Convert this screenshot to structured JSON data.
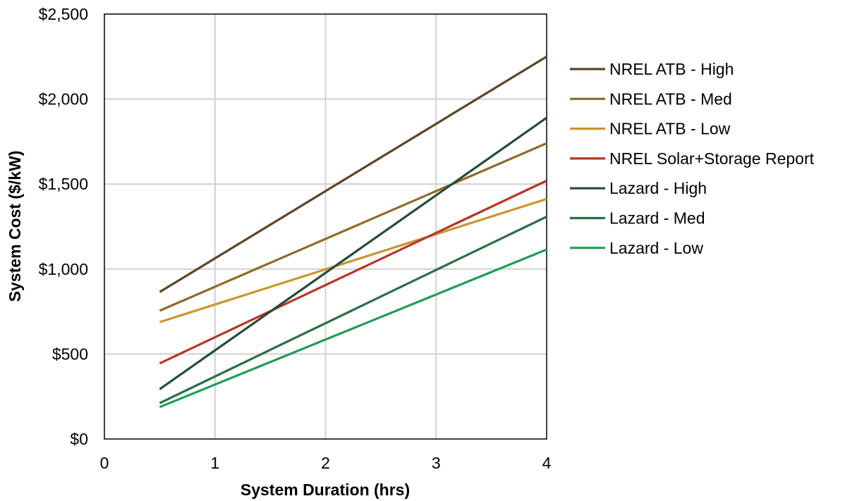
{
  "chart_data": {
    "type": "line",
    "title": "",
    "xlabel": "System Duration (hrs)",
    "ylabel": "System Cost ($/kW)",
    "xlim": [
      0,
      4
    ],
    "ylim": [
      0,
      2500
    ],
    "x_ticks": [
      {
        "value": 0,
        "label": "0"
      },
      {
        "value": 1,
        "label": "1"
      },
      {
        "value": 2,
        "label": "2"
      },
      {
        "value": 3,
        "label": "3"
      },
      {
        "value": 4,
        "label": "4"
      }
    ],
    "y_ticks": [
      {
        "value": 0,
        "label": "$0"
      },
      {
        "value": 500,
        "label": "$500"
      },
      {
        "value": 1000,
        "label": "$1,000"
      },
      {
        "value": 1500,
        "label": "$1,500"
      },
      {
        "value": 2000,
        "label": "$2,000"
      },
      {
        "value": 2500,
        "label": "$2,500"
      }
    ],
    "grid": true,
    "legend_position": "right",
    "x": [
      0.5,
      4
    ],
    "series": [
      {
        "name": "NREL ATB - High",
        "color": "#5c4527",
        "values": [
          865,
          2250
        ]
      },
      {
        "name": "NREL ATB - Med",
        "color": "#8f6a2a",
        "values": [
          755,
          1740
        ]
      },
      {
        "name": "NREL ATB - Low",
        "color": "#c7962e",
        "values": [
          688,
          1412
        ]
      },
      {
        "name": "NREL Solar+Storage Report",
        "color": "#b73528",
        "values": [
          445,
          1520
        ]
      },
      {
        "name": "Lazard - High",
        "color": "#234d38",
        "values": [
          293,
          1890
        ]
      },
      {
        "name": "Lazard - Med",
        "color": "#2d6e45",
        "values": [
          211,
          1308
        ]
      },
      {
        "name": "Lazard - Low",
        "color": "#209c58",
        "values": [
          188,
          1115
        ]
      }
    ]
  }
}
